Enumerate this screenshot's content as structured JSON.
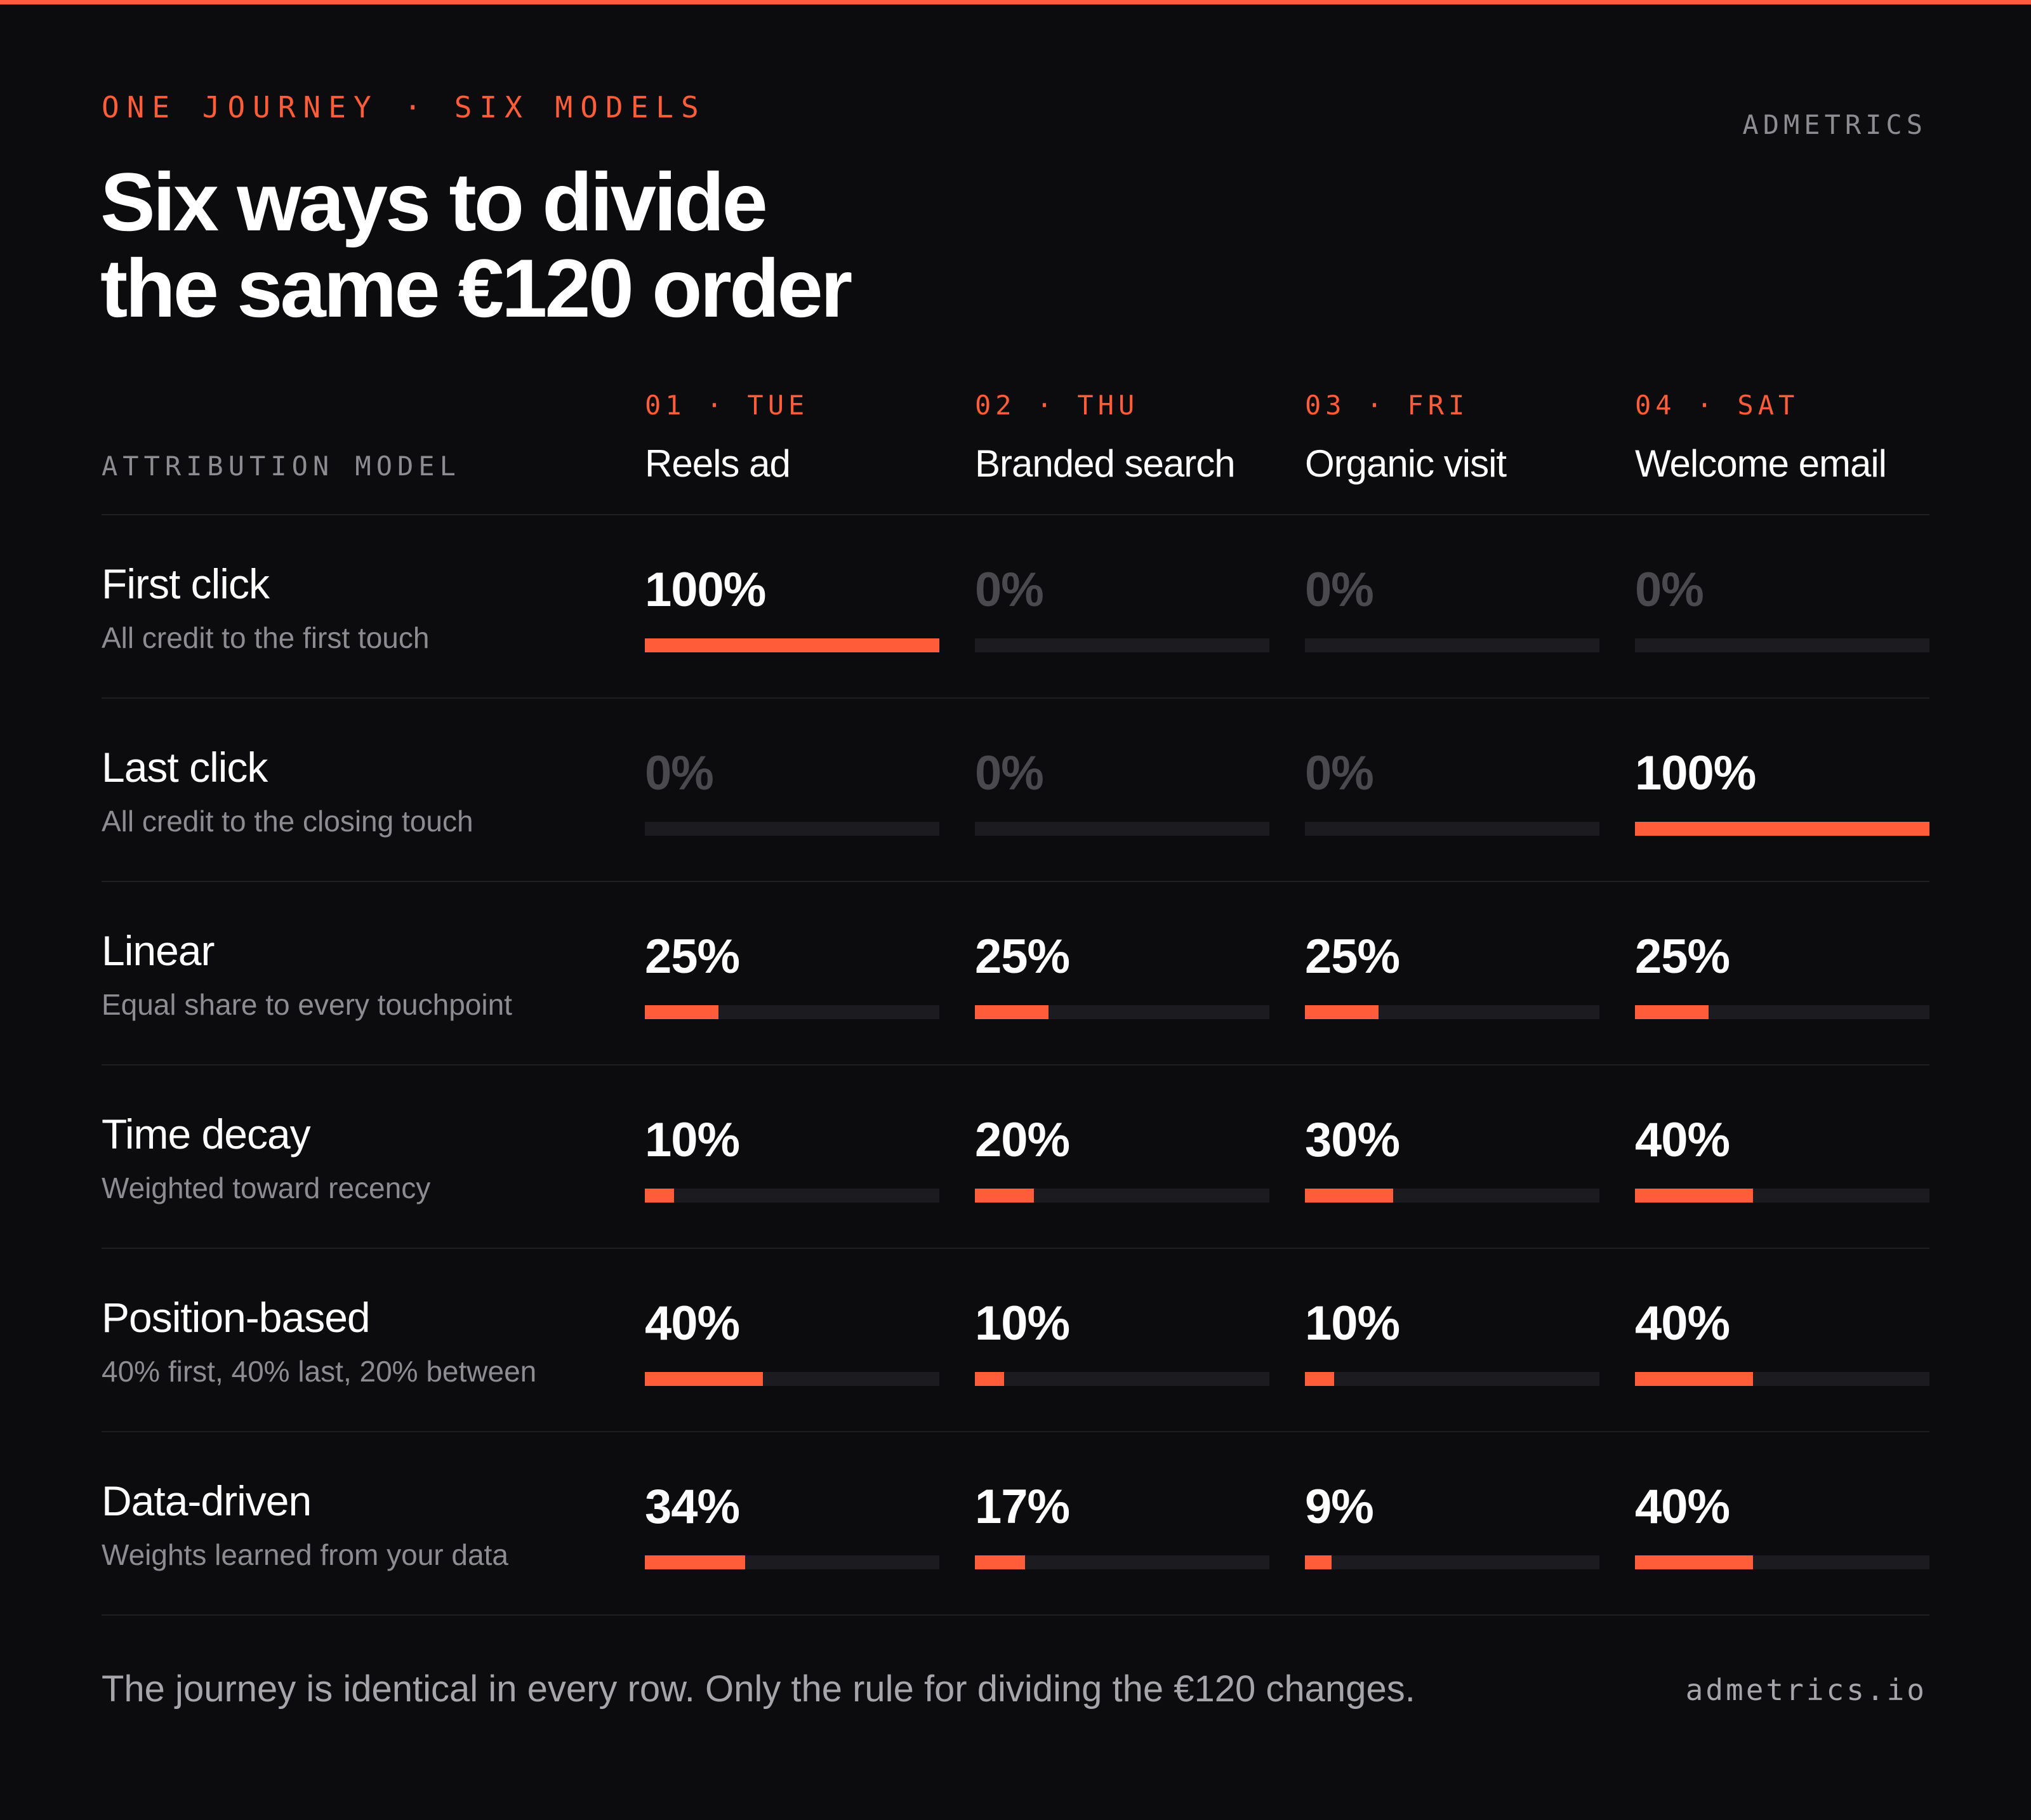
{
  "header": {
    "eyebrow": "ONE JOURNEY · SIX MODELS",
    "brand": "ADMETRICS",
    "title_line1": "Six ways to divide",
    "title_line2": "the same €120 order"
  },
  "table": {
    "model_header": "ATTRIBUTION MODEL"
  },
  "footer": {
    "note": "The journey is identical in every row. Only the rule for dividing the €120 changes.",
    "url": "admetrics.io"
  },
  "colors": {
    "accent": "#ff5c39",
    "background": "#0c0c0e",
    "track": "#1c1c20",
    "zero_text": "#4a4a4e"
  },
  "chart_data": {
    "type": "table",
    "unit": "%",
    "touchpoints": [
      {
        "step": "01",
        "day": "TUE",
        "name": "Reels ad"
      },
      {
        "step": "02",
        "day": "THU",
        "name": "Branded search"
      },
      {
        "step": "03",
        "day": "FRI",
        "name": "Organic visit"
      },
      {
        "step": "04",
        "day": "SAT",
        "name": "Welcome email"
      }
    ],
    "models": [
      {
        "name": "First click",
        "description": "All credit to the first touch",
        "values": [
          100,
          0,
          0,
          0
        ]
      },
      {
        "name": "Last click",
        "description": "All credit to the closing touch",
        "values": [
          0,
          0,
          0,
          100
        ]
      },
      {
        "name": "Linear",
        "description": "Equal share to every touchpoint",
        "values": [
          25,
          25,
          25,
          25
        ]
      },
      {
        "name": "Time decay",
        "description": "Weighted toward recency",
        "values": [
          10,
          20,
          30,
          40
        ]
      },
      {
        "name": "Position-based",
        "description": "40% first, 40% last, 20% between",
        "values": [
          40,
          10,
          10,
          40
        ]
      },
      {
        "name": "Data-driven",
        "description": "Weights learned from your data",
        "values": [
          34,
          17,
          9,
          40
        ]
      }
    ],
    "bar_max": 100
  }
}
